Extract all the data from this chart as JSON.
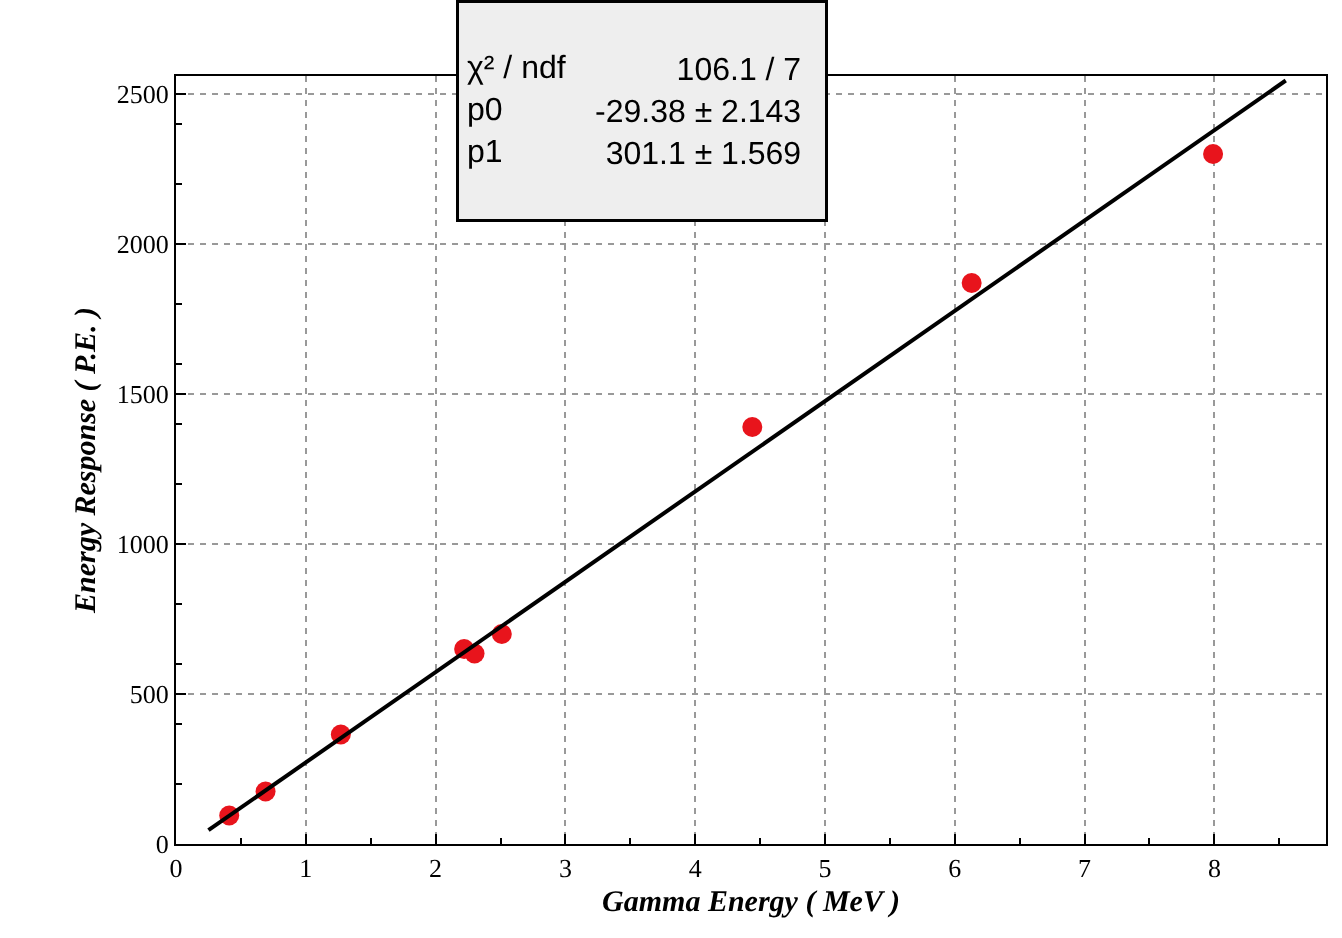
{
  "chart_data": {
    "type": "scatter",
    "xlabel": "Gamma Energy ( MeV )",
    "ylabel": "Energy Response ( P.E. )",
    "x": [
      0.41,
      0.69,
      1.27,
      2.22,
      2.3,
      2.51,
      4.44,
      6.13,
      7.99
    ],
    "series": [
      {
        "color": "#e8141c",
        "marker": "circle",
        "values": [
          95,
          175,
          365,
          650,
          635,
          700,
          1390,
          1870,
          2300
        ]
      },
      {
        "type": "line",
        "color": "#000000",
        "marker": "none",
        "line_style": "solid",
        "x": [
          0.25,
          8.55
        ],
        "values": [
          46,
          2545
        ]
      }
    ],
    "xlim": [
      0,
      8.86
    ],
    "xticks": [
      0,
      1,
      2,
      3,
      4,
      5,
      6,
      7,
      8
    ],
    "ylim": [
      0,
      2560
    ],
    "yticks": [
      0,
      500,
      1000,
      1500,
      2000,
      2500
    ],
    "grid": true,
    "annotations": [
      "χ² / ndf",
      "106.1 / 7",
      "p0",
      "-29.38 ± 2.143",
      "p1",
      "301.1 ± 1.569"
    ]
  }
}
